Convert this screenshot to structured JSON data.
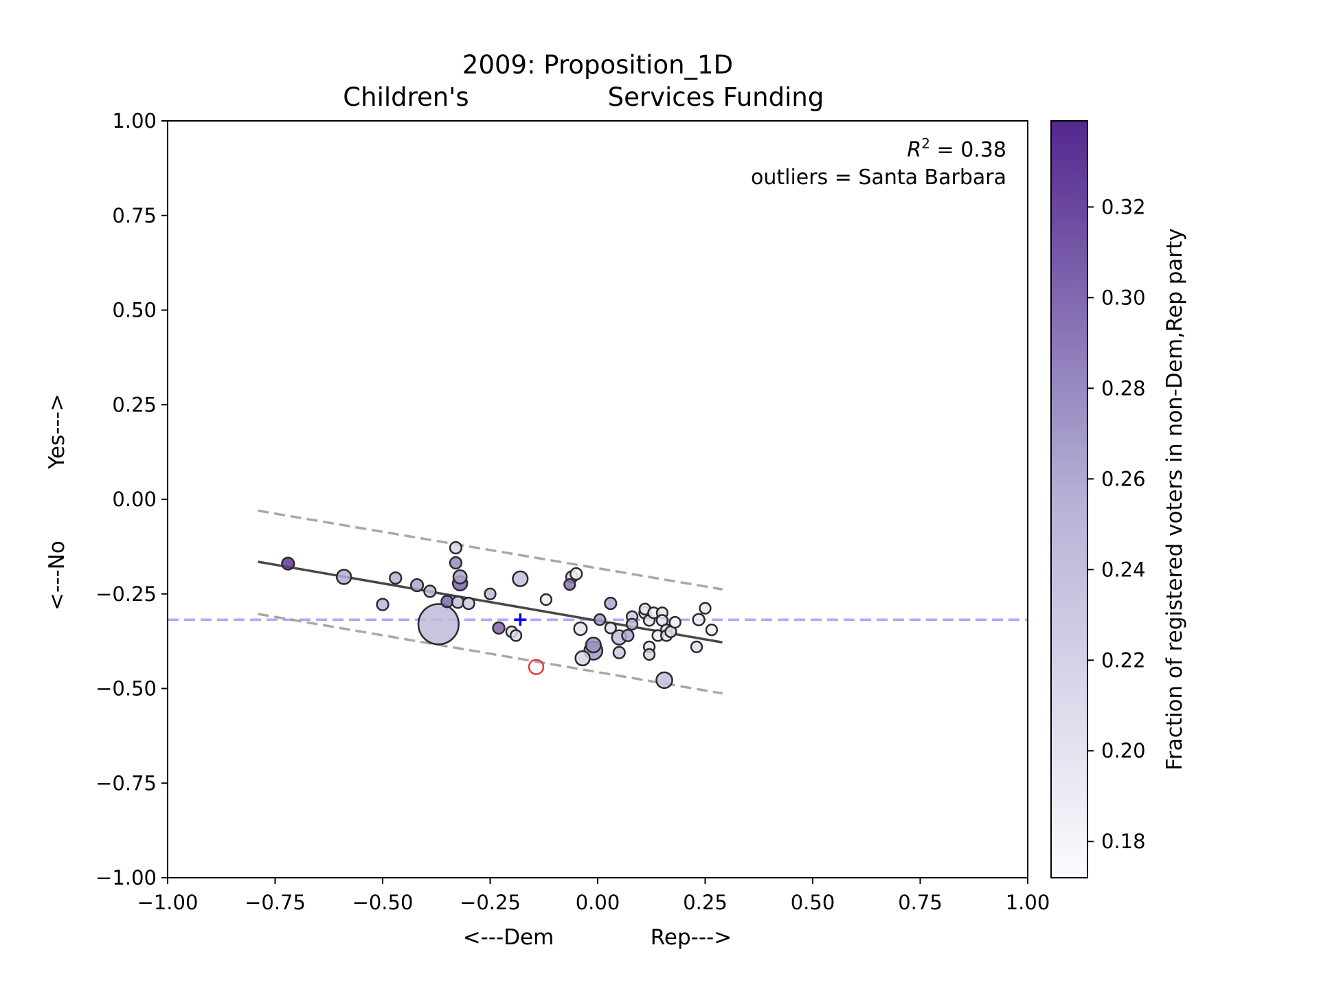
{
  "chart_data": {
    "type": "scatter",
    "title": "2009: Proposition_1D",
    "subtitle_left": "Children's",
    "subtitle_right": "Services Funding",
    "xlabel_left": "<---Dem",
    "xlabel_right": "Rep--->",
    "ylabel_left": "<---No",
    "ylabel_right": "Yes--->",
    "xlim": [
      -1.0,
      1.0
    ],
    "ylim": [
      -1.0,
      1.0
    ],
    "xticks": [
      "−1.00",
      "−0.75",
      "−0.50",
      "−0.25",
      "0.00",
      "0.25",
      "0.50",
      "0.75",
      "1.00"
    ],
    "yticks": [
      "−1.00",
      "−0.75",
      "−0.50",
      "−0.25",
      "0.00",
      "0.25",
      "0.50",
      "0.75",
      "1.00"
    ],
    "annotation_r2": "= 0.38",
    "annotation_outliers": "outliers = Santa Barbara",
    "colorbar": {
      "label": "Fraction of registered voters in non-Dem,Rep party",
      "range": [
        0.172,
        0.339
      ],
      "ticks": [
        "0.18",
        "0.20",
        "0.22",
        "0.24",
        "0.26",
        "0.28",
        "0.30",
        "0.32"
      ],
      "color_low": "#fcfbfd",
      "color_high": "#54278f"
    },
    "regression_line": {
      "x": [
        -0.79,
        0.29
      ],
      "y": [
        -0.165,
        -0.378
      ]
    },
    "upper_band": {
      "x": [
        -0.79,
        0.29
      ],
      "y": [
        -0.03,
        -0.238
      ]
    },
    "lower_band": {
      "x": [
        -0.79,
        0.29
      ],
      "y": [
        -0.303,
        -0.513
      ]
    },
    "mean_line_y": -0.318,
    "mean_marker": {
      "x": -0.18,
      "y": -0.318,
      "color": "#0000ff"
    },
    "outlier_points": [
      {
        "x": -0.143,
        "y": -0.443,
        "label": "Santa Barbara",
        "color": "#e8383d"
      }
    ],
    "points": [
      {
        "x": -0.72,
        "y": -0.17,
        "c": 0.328,
        "s": 0.5
      },
      {
        "x": -0.59,
        "y": -0.205,
        "c": 0.258,
        "s": 0.7
      },
      {
        "x": -0.5,
        "y": -0.278,
        "c": 0.25,
        "s": 0.45
      },
      {
        "x": -0.47,
        "y": -0.208,
        "c": 0.252,
        "s": 0.45
      },
      {
        "x": -0.42,
        "y": -0.227,
        "c": 0.262,
        "s": 0.5
      },
      {
        "x": -0.39,
        "y": -0.243,
        "c": 0.248,
        "s": 0.45
      },
      {
        "x": -0.37,
        "y": -0.33,
        "c": 0.245,
        "s": 5.5
      },
      {
        "x": -0.35,
        "y": -0.27,
        "c": 0.3,
        "s": 0.45
      },
      {
        "x": -0.33,
        "y": -0.128,
        "c": 0.215,
        "s": 0.45
      },
      {
        "x": -0.33,
        "y": -0.168,
        "c": 0.28,
        "s": 0.45
      },
      {
        "x": -0.32,
        "y": -0.205,
        "c": 0.262,
        "s": 0.6
      },
      {
        "x": -0.32,
        "y": -0.222,
        "c": 0.302,
        "s": 0.7
      },
      {
        "x": -0.325,
        "y": -0.272,
        "c": 0.24,
        "s": 0.45
      },
      {
        "x": -0.3,
        "y": -0.275,
        "c": 0.228,
        "s": 0.45
      },
      {
        "x": -0.25,
        "y": -0.25,
        "c": 0.245,
        "s": 0.4
      },
      {
        "x": -0.23,
        "y": -0.34,
        "c": 0.3,
        "s": 0.45
      },
      {
        "x": -0.2,
        "y": -0.35,
        "c": 0.205,
        "s": 0.4
      },
      {
        "x": -0.19,
        "y": -0.36,
        "c": 0.21,
        "s": 0.4
      },
      {
        "x": -0.18,
        "y": -0.21,
        "c": 0.24,
        "s": 0.75
      },
      {
        "x": -0.12,
        "y": -0.265,
        "c": 0.19,
        "s": 0.4
      },
      {
        "x": -0.06,
        "y": -0.205,
        "c": 0.21,
        "s": 0.45
      },
      {
        "x": -0.065,
        "y": -0.225,
        "c": 0.292,
        "s": 0.4
      },
      {
        "x": -0.05,
        "y": -0.197,
        "c": 0.185,
        "s": 0.45
      },
      {
        "x": -0.04,
        "y": -0.342,
        "c": 0.2,
        "s": 0.55
      },
      {
        "x": -0.035,
        "y": -0.42,
        "c": 0.215,
        "s": 0.7
      },
      {
        "x": -0.01,
        "y": -0.385,
        "c": 0.275,
        "s": 0.75
      },
      {
        "x": -0.01,
        "y": -0.4,
        "c": 0.272,
        "s": 1.1
      },
      {
        "x": 0.005,
        "y": -0.318,
        "c": 0.268,
        "s": 0.4
      },
      {
        "x": 0.03,
        "y": -0.275,
        "c": 0.262,
        "s": 0.45
      },
      {
        "x": 0.03,
        "y": -0.34,
        "c": 0.2,
        "s": 0.4
      },
      {
        "x": 0.05,
        "y": -0.365,
        "c": 0.24,
        "s": 0.7
      },
      {
        "x": 0.05,
        "y": -0.405,
        "c": 0.23,
        "s": 0.45
      },
      {
        "x": 0.07,
        "y": -0.36,
        "c": 0.262,
        "s": 0.45
      },
      {
        "x": 0.08,
        "y": -0.31,
        "c": 0.23,
        "s": 0.4
      },
      {
        "x": 0.08,
        "y": -0.33,
        "c": 0.245,
        "s": 0.4
      },
      {
        "x": 0.11,
        "y": -0.3,
        "c": 0.22,
        "s": 0.45
      },
      {
        "x": 0.11,
        "y": -0.29,
        "c": 0.19,
        "s": 0.4
      },
      {
        "x": 0.12,
        "y": -0.32,
        "c": 0.2,
        "s": 0.4
      },
      {
        "x": 0.12,
        "y": -0.39,
        "c": 0.2,
        "s": 0.4
      },
      {
        "x": 0.12,
        "y": -0.41,
        "c": 0.215,
        "s": 0.4
      },
      {
        "x": 0.13,
        "y": -0.3,
        "c": 0.185,
        "s": 0.4
      },
      {
        "x": 0.14,
        "y": -0.36,
        "c": 0.19,
        "s": 0.4
      },
      {
        "x": 0.15,
        "y": -0.3,
        "c": 0.195,
        "s": 0.4
      },
      {
        "x": 0.15,
        "y": -0.32,
        "c": 0.2,
        "s": 0.4
      },
      {
        "x": 0.155,
        "y": -0.478,
        "c": 0.24,
        "s": 0.85
      },
      {
        "x": 0.16,
        "y": -0.345,
        "c": 0.205,
        "s": 0.4
      },
      {
        "x": 0.16,
        "y": -0.36,
        "c": 0.195,
        "s": 0.4
      },
      {
        "x": 0.17,
        "y": -0.35,
        "c": 0.2,
        "s": 0.4
      },
      {
        "x": 0.18,
        "y": -0.325,
        "c": 0.19,
        "s": 0.4
      },
      {
        "x": 0.23,
        "y": -0.39,
        "c": 0.205,
        "s": 0.4
      },
      {
        "x": 0.235,
        "y": -0.318,
        "c": 0.19,
        "s": 0.45
      },
      {
        "x": 0.25,
        "y": -0.288,
        "c": 0.195,
        "s": 0.4
      },
      {
        "x": 0.265,
        "y": -0.345,
        "c": 0.185,
        "s": 0.4
      }
    ]
  }
}
